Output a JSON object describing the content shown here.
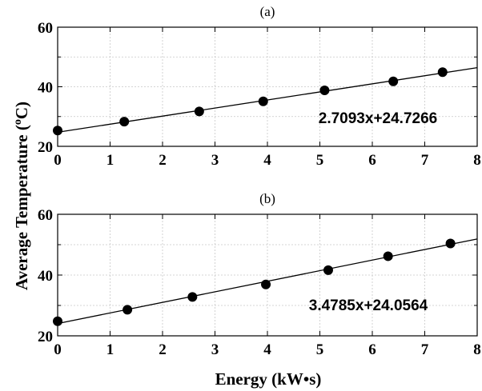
{
  "chart_data": [
    {
      "type": "scatter",
      "panel_label": "(a)",
      "x": [
        0,
        1.27,
        2.7,
        3.92,
        5.09,
        6.4,
        7.34
      ],
      "y": [
        25.3,
        28.3,
        31.7,
        35.1,
        38.8,
        41.8,
        44.9
      ],
      "fit": {
        "slope": 2.7093,
        "intercept": 24.7266,
        "label": "2.7093x+24.7266"
      },
      "xlim": [
        0,
        8
      ],
      "ylim": [
        20,
        60
      ],
      "xticks": [
        "0",
        "1",
        "2",
        "3",
        "4",
        "5",
        "6",
        "7",
        "8"
      ],
      "yticks": [
        "20",
        "40",
        "60"
      ],
      "grid": true
    },
    {
      "type": "scatter",
      "panel_label": "(b)",
      "x": [
        0,
        1.33,
        2.57,
        3.97,
        5.16,
        6.3,
        7.49
      ],
      "y": [
        24.8,
        28.6,
        32.8,
        36.9,
        41.6,
        46.2,
        50.4
      ],
      "fit": {
        "slope": 3.4785,
        "intercept": 24.0564,
        "label": "3.4785x+24.0564"
      },
      "xlim": [
        0,
        8
      ],
      "ylim": [
        20,
        60
      ],
      "xticks": [
        "0",
        "1",
        "2",
        "3",
        "4",
        "5",
        "6",
        "7",
        "8"
      ],
      "yticks": [
        "20",
        "40",
        "60"
      ],
      "grid": true
    }
  ],
  "axes": {
    "xlabel": "Energy (kW•s)",
    "ylabel_main": "Average Temperature (",
    "ylabel_sup": "o",
    "ylabel_end": "C)"
  }
}
